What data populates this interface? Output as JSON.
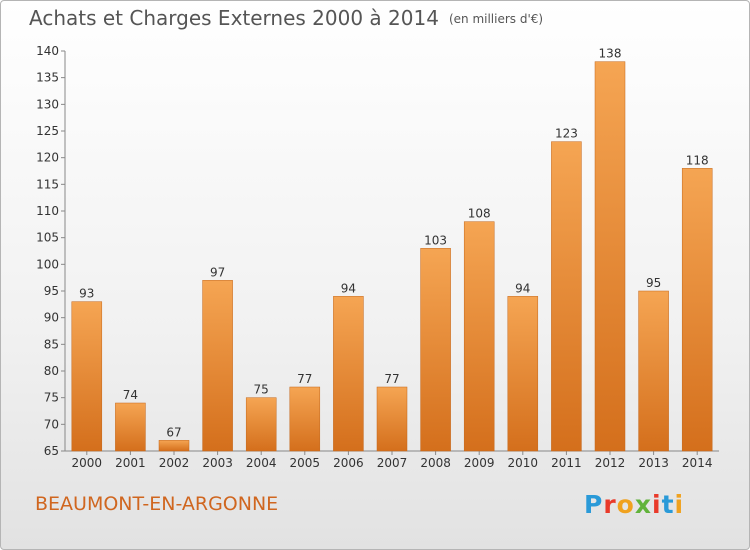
{
  "title": "Achats et Charges Externes 2000 à 2014",
  "unit": "(en milliers d'€)",
  "city": "BEAUMONT-EN-ARGONNE",
  "logo": {
    "letters": [
      "P",
      "r",
      "o",
      "x",
      "i",
      "t",
      "i"
    ],
    "colors": [
      "#2a9ad8",
      "#e93a2a",
      "#f0a21f",
      "#61b33a",
      "#e93a2a",
      "#2a9ad8",
      "#f0a21f"
    ]
  },
  "colors": {
    "bar_top": "#f5a553",
    "bar_bottom": "#d46f1c",
    "axis": "#888888",
    "text": "#333333",
    "city": "#d0661f"
  },
  "chart_data": {
    "type": "bar",
    "title": "Achats et Charges Externes 2000 à 2014",
    "categories": [
      "2000",
      "2001",
      "2002",
      "2003",
      "2004",
      "2005",
      "2006",
      "2007",
      "2008",
      "2009",
      "2010",
      "2011",
      "2012",
      "2013",
      "2014"
    ],
    "values": [
      93,
      74,
      67,
      97,
      75,
      77,
      94,
      77,
      103,
      108,
      94,
      123,
      138,
      95,
      118
    ],
    "ylim": [
      65,
      140
    ],
    "yticks": [
      65,
      70,
      75,
      80,
      85,
      90,
      95,
      100,
      105,
      110,
      115,
      120,
      125,
      130,
      135,
      140
    ],
    "grid": false,
    "xlabel": "",
    "ylabel": ""
  }
}
